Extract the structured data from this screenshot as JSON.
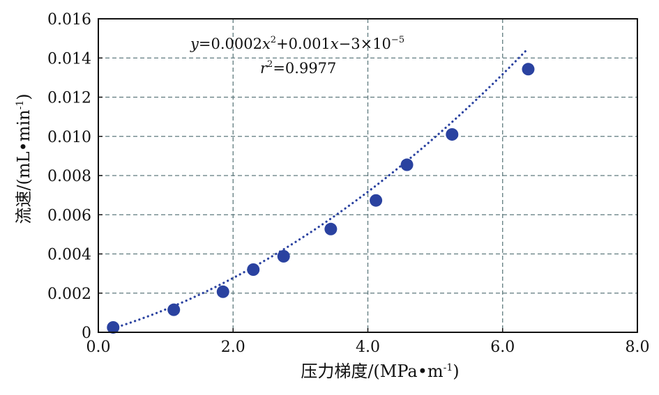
{
  "chart_data": {
    "type": "scatter",
    "xlabel": "压力梯度/(MPa•m",
    "xlabel_sup": "-1",
    "xlabel_tail": ")",
    "ylabel": "流速/(mL•min",
    "ylabel_sup": "-1",
    "ylabel_tail": ")",
    "xlim": [
      0,
      8
    ],
    "ylim": [
      0,
      0.016
    ],
    "xticks": [
      0.0,
      2.0,
      4.0,
      6.0,
      8.0
    ],
    "xtick_labels": [
      "0.0",
      "2.0",
      "4.0",
      "6.0",
      "8.0"
    ],
    "yticks": [
      0,
      0.002,
      0.004,
      0.006,
      0.008,
      0.01,
      0.012,
      0.014,
      0.016
    ],
    "ytick_labels": [
      "0",
      "0.002",
      "0.004",
      "0.006",
      "0.008",
      "0.010",
      "0.012",
      "0.014",
      "0.016"
    ],
    "grid": true,
    "series": [
      {
        "color": "#2a42a0",
        "x": [
          0.22,
          1.12,
          1.85,
          2.3,
          2.75,
          3.45,
          4.12,
          4.58,
          5.25,
          6.38
        ],
        "y": [
          0.00025,
          0.00115,
          0.00207,
          0.0032,
          0.00388,
          0.00527,
          0.00673,
          0.00855,
          0.0101,
          0.01343
        ]
      }
    ],
    "fit": {
      "type": "polynomial",
      "coefficients": [
        0.0002,
        0.001,
        -3e-05
      ],
      "x_range": [
        0.22,
        6.38
      ],
      "color": "#2a42a0",
      "style": "dotted"
    },
    "annotations": {
      "equation_parts": [
        "y",
        "=0.0002",
        "x",
        "2",
        "+0.001",
        "x",
        "−3×10",
        "−5"
      ],
      "r2_parts": [
        "r",
        "2",
        "=0.9977"
      ]
    }
  }
}
